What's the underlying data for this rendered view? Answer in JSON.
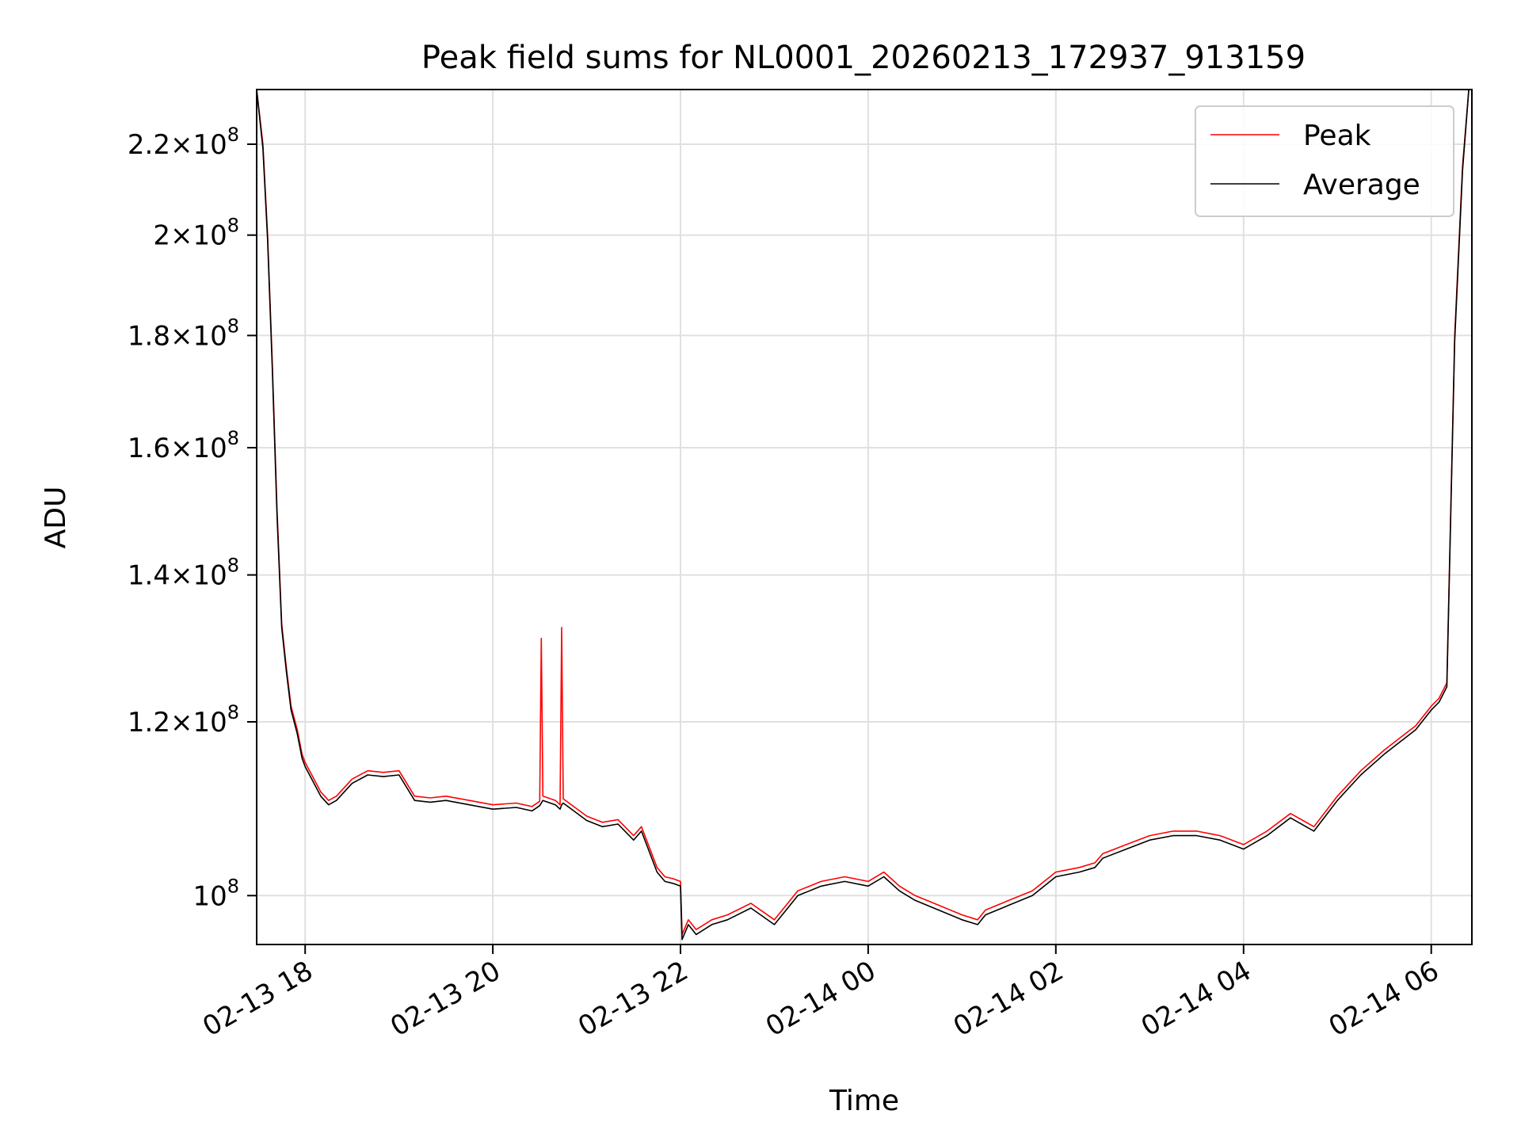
{
  "chart_data": {
    "type": "line",
    "title": "Peak field sums for NL0001_20260213_172937_913159",
    "xlabel": "Time",
    "ylabel": "ADU",
    "xscale": "time",
    "yscale": "log",
    "xlim": [
      "2026-02-13 17:29",
      "2026-02-14 06:26"
    ],
    "ylim": [
      95000000,
      233000000
    ],
    "grid": true,
    "legend": {
      "placement": "top-right",
      "entries": [
        "Peak",
        "Average"
      ]
    },
    "x_ticks": [
      {
        "value": "2026-02-13 18:00",
        "label": "02-13 18"
      },
      {
        "value": "2026-02-13 20:00",
        "label": "02-13 20"
      },
      {
        "value": "2026-02-13 22:00",
        "label": "02-13 22"
      },
      {
        "value": "2026-02-14 00:00",
        "label": "02-14 00"
      },
      {
        "value": "2026-02-14 02:00",
        "label": "02-14 02"
      },
      {
        "value": "2026-02-14 04:00",
        "label": "02-14 04"
      },
      {
        "value": "2026-02-14 06:00",
        "label": "02-14 06"
      }
    ],
    "y_ticks": [
      {
        "value": 100000000,
        "mant": "",
        "exp": "8"
      },
      {
        "value": 120000000,
        "mant": "1.2",
        "exp": "8"
      },
      {
        "value": 140000000,
        "mant": "1.4",
        "exp": "8"
      },
      {
        "value": 160000000,
        "mant": "1.6",
        "exp": "8"
      },
      {
        "value": 180000000,
        "mant": "1.8",
        "exp": "8"
      },
      {
        "value": 200000000,
        "mant": "2",
        "exp": "8"
      },
      {
        "value": 220000000,
        "mant": "2.2",
        "exp": "8"
      }
    ],
    "series": [
      {
        "name": "Peak",
        "color": "#ff0000",
        "x": [
          "2026-02-13 17:29",
          "2026-02-13 17:33",
          "2026-02-13 17:36",
          "2026-02-13 17:39",
          "2026-02-13 17:42",
          "2026-02-13 17:45",
          "2026-02-13 17:48",
          "2026-02-13 17:51",
          "2026-02-13 17:55",
          "2026-02-13 17:58",
          "2026-02-13 18:00",
          "2026-02-13 18:10",
          "2026-02-13 18:15",
          "2026-02-13 18:20",
          "2026-02-13 18:30",
          "2026-02-13 18:40",
          "2026-02-13 18:50",
          "2026-02-13 19:00",
          "2026-02-13 19:10",
          "2026-02-13 19:20",
          "2026-02-13 19:30",
          "2026-02-13 19:45",
          "2026-02-13 20:00",
          "2026-02-13 20:15",
          "2026-02-13 20:25",
          "2026-02-13 20:30",
          "2026-02-13 20:31",
          "2026-02-13 20:32",
          "2026-02-13 20:40",
          "2026-02-13 20:43",
          "2026-02-13 20:44",
          "2026-02-13 20:45",
          "2026-02-13 21:00",
          "2026-02-13 21:10",
          "2026-02-13 21:20",
          "2026-02-13 21:30",
          "2026-02-13 21:35",
          "2026-02-13 21:45",
          "2026-02-13 21:50",
          "2026-02-13 21:55",
          "2026-02-13 22:00",
          "2026-02-13 22:01",
          "2026-02-13 22:05",
          "2026-02-13 22:10",
          "2026-02-13 22:20",
          "2026-02-13 22:30",
          "2026-02-13 22:45",
          "2026-02-13 23:00",
          "2026-02-13 23:15",
          "2026-02-13 23:30",
          "2026-02-13 23:45",
          "2026-02-14 00:00",
          "2026-02-14 00:10",
          "2026-02-14 00:20",
          "2026-02-14 00:30",
          "2026-02-14 00:45",
          "2026-02-14 01:00",
          "2026-02-14 01:10",
          "2026-02-14 01:15",
          "2026-02-14 01:30",
          "2026-02-14 01:45",
          "2026-02-14 02:00",
          "2026-02-14 02:15",
          "2026-02-14 02:25",
          "2026-02-14 02:30",
          "2026-02-14 02:45",
          "2026-02-14 03:00",
          "2026-02-14 03:15",
          "2026-02-14 03:30",
          "2026-02-14 03:45",
          "2026-02-14 04:00",
          "2026-02-14 04:15",
          "2026-02-14 04:30",
          "2026-02-14 04:45",
          "2026-02-14 05:00",
          "2026-02-14 05:15",
          "2026-02-14 05:30",
          "2026-02-14 05:40",
          "2026-02-14 05:50",
          "2026-02-14 06:00",
          "2026-02-14 06:05",
          "2026-02-14 06:10",
          "2026-02-14 06:15",
          "2026-02-14 06:20",
          "2026-02-14 06:24"
        ],
        "values": [
          233000000,
          220000000,
          200000000,
          175000000,
          150000000,
          133000000,
          127000000,
          122000000,
          119000000,
          116000000,
          115000000,
          111500000,
          110500000,
          111000000,
          113000000,
          114000000,
          113800000,
          114000000,
          111000000,
          110800000,
          111000000,
          110500000,
          110000000,
          110200000,
          109800000,
          110400000,
          131000000,
          111000000,
          110500000,
          110000000,
          132500000,
          110700000,
          108700000,
          108000000,
          108300000,
          106500000,
          107500000,
          103000000,
          102000000,
          101800000,
          101500000,
          96000000,
          97500000,
          96500000,
          97500000,
          98000000,
          99200000,
          97500000,
          100500000,
          101500000,
          102000000,
          101500000,
          102500000,
          101000000,
          100000000,
          99000000,
          98000000,
          97500000,
          98500000,
          99500000,
          100500000,
          102500000,
          103000000,
          103500000,
          104500000,
          105500000,
          106500000,
          107000000,
          107000000,
          106500000,
          105500000,
          107000000,
          109000000,
          107500000,
          111000000,
          114000000,
          116500000,
          118000000,
          119500000,
          122000000,
          123000000,
          125000000,
          180000000,
          215000000,
          233000000
        ]
      },
      {
        "name": "Average",
        "color": "#000000",
        "x": [
          "2026-02-13 17:29",
          "2026-02-13 17:33",
          "2026-02-13 17:36",
          "2026-02-13 17:39",
          "2026-02-13 17:42",
          "2026-02-13 17:45",
          "2026-02-13 17:48",
          "2026-02-13 17:51",
          "2026-02-13 17:55",
          "2026-02-13 17:58",
          "2026-02-13 18:00",
          "2026-02-13 18:10",
          "2026-02-13 18:15",
          "2026-02-13 18:20",
          "2026-02-13 18:30",
          "2026-02-13 18:40",
          "2026-02-13 18:50",
          "2026-02-13 19:00",
          "2026-02-13 19:10",
          "2026-02-13 19:20",
          "2026-02-13 19:30",
          "2026-02-13 19:45",
          "2026-02-13 20:00",
          "2026-02-13 20:15",
          "2026-02-13 20:25",
          "2026-02-13 20:30",
          "2026-02-13 20:31",
          "2026-02-13 20:32",
          "2026-02-13 20:40",
          "2026-02-13 20:43",
          "2026-02-13 20:44",
          "2026-02-13 20:45",
          "2026-02-13 21:00",
          "2026-02-13 21:10",
          "2026-02-13 21:20",
          "2026-02-13 21:30",
          "2026-02-13 21:35",
          "2026-02-13 21:45",
          "2026-02-13 21:50",
          "2026-02-13 21:55",
          "2026-02-13 22:00",
          "2026-02-13 22:01",
          "2026-02-13 22:05",
          "2026-02-13 22:10",
          "2026-02-13 22:20",
          "2026-02-13 22:30",
          "2026-02-13 22:45",
          "2026-02-13 23:00",
          "2026-02-13 23:15",
          "2026-02-13 23:30",
          "2026-02-13 23:45",
          "2026-02-14 00:00",
          "2026-02-14 00:10",
          "2026-02-14 00:20",
          "2026-02-14 00:30",
          "2026-02-14 00:45",
          "2026-02-14 01:00",
          "2026-02-14 01:10",
          "2026-02-14 01:15",
          "2026-02-14 01:30",
          "2026-02-14 01:45",
          "2026-02-14 02:00",
          "2026-02-14 02:15",
          "2026-02-14 02:25",
          "2026-02-14 02:30",
          "2026-02-14 02:45",
          "2026-02-14 03:00",
          "2026-02-14 03:15",
          "2026-02-14 03:30",
          "2026-02-14 03:45",
          "2026-02-14 04:00",
          "2026-02-14 04:15",
          "2026-02-14 04:30",
          "2026-02-14 04:45",
          "2026-02-14 05:00",
          "2026-02-14 05:15",
          "2026-02-14 05:30",
          "2026-02-14 05:40",
          "2026-02-14 05:50",
          "2026-02-14 06:00",
          "2026-02-14 06:05",
          "2026-02-14 06:10",
          "2026-02-14 06:15",
          "2026-02-14 06:20",
          "2026-02-14 06:24"
        ],
        "values": [
          233000000,
          219000000,
          199000000,
          174000000,
          149000000,
          132500000,
          126500000,
          121500000,
          118500000,
          115500000,
          114500000,
          111000000,
          110000000,
          110500000,
          112500000,
          113500000,
          113300000,
          113500000,
          110500000,
          110300000,
          110500000,
          110000000,
          109500000,
          109700000,
          109300000,
          109900000,
          110200000,
          110500000,
          110000000,
          109500000,
          110000000,
          110200000,
          108200000,
          107500000,
          107800000,
          106000000,
          107000000,
          102500000,
          101500000,
          101300000,
          101000000,
          95500000,
          97000000,
          96000000,
          97000000,
          97500000,
          98700000,
          97000000,
          100000000,
          101000000,
          101500000,
          101000000,
          102000000,
          100500000,
          99500000,
          98500000,
          97500000,
          97000000,
          98000000,
          99000000,
          100000000,
          102000000,
          102500000,
          103000000,
          104000000,
          105000000,
          106000000,
          106500000,
          106500000,
          106000000,
          105000000,
          106500000,
          108500000,
          107000000,
          110500000,
          113500000,
          116000000,
          117500000,
          119000000,
          121500000,
          122500000,
          124500000,
          179000000,
          214000000,
          233000000
        ]
      }
    ]
  }
}
